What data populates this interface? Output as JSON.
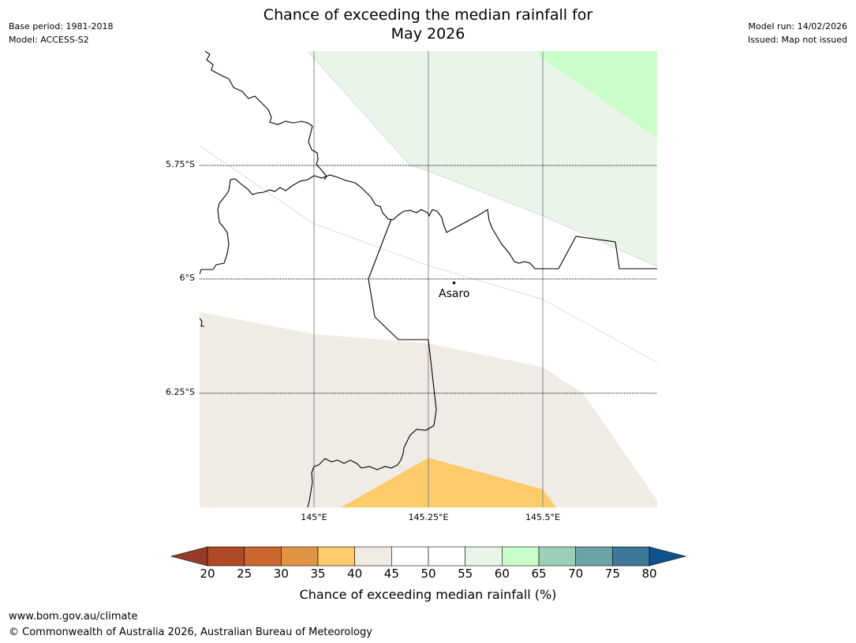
{
  "header": {
    "title_line1": "Chance of exceeding the median rainfall for",
    "title_line2": "May 2026",
    "base_period": "Base period: 1981-2018",
    "model": "Model: ACCESS-S2",
    "model_run": "Model run: 14/02/2026",
    "issued": "Issued: Map not issued"
  },
  "map": {
    "latitude_labels": [
      "5.75°S",
      "6°S",
      "6.25°S"
    ],
    "longitude_labels": [
      "145°E",
      "145.25°E",
      "145.5°E"
    ],
    "place": {
      "name": "Asaro",
      "lat": -6.01,
      "lon": 145.31
    },
    "regions": [
      {
        "category": "40-45",
        "color": "#f0ebe4"
      },
      {
        "category": "35-40",
        "color": "#fdcb69"
      },
      {
        "category": "55-60",
        "color": "#e9f5e9"
      },
      {
        "category": "60-65",
        "color": "#c9fdca"
      }
    ]
  },
  "colorbar": {
    "title": "Chance of exceeding median rainfall (%)",
    "ticks": [
      "20",
      "25",
      "30",
      "35",
      "40",
      "45",
      "50",
      "55",
      "60",
      "65",
      "70",
      "75",
      "80"
    ],
    "colors": [
      "#b04a26",
      "#cc6631",
      "#e19444",
      "#fdcb69",
      "#f0ebe4",
      "#ffffff",
      "#ffffff",
      "#e9f5e9",
      "#c9fdca",
      "#9ccfb8",
      "#6ca3a5",
      "#3e7898"
    ],
    "under_color": "#973b26",
    "over_color": "#11528c"
  },
  "footer": {
    "url": "www.bom.gov.au/climate",
    "copyright": "© Commonwealth of Australia 2026, Australian Bureau of Meteorology"
  }
}
